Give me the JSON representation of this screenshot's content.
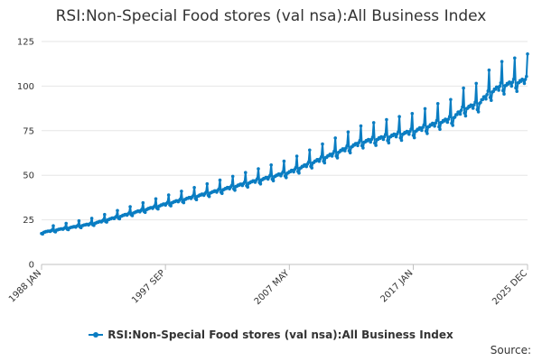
{
  "chart_data": {
    "type": "line",
    "title": "RSI:Non-Special Food stores (val nsa):All Business Index",
    "xlabel": "",
    "ylabel": "",
    "ylim": [
      0,
      125
    ],
    "yticks": [
      0,
      25,
      50,
      75,
      100,
      125
    ],
    "x_range": [
      "1988 JAN",
      "2025 DEC"
    ],
    "xticks": [
      "1988 JAN",
      "1997 SEP",
      "2007 MAY",
      "2017 JAN",
      "2025 DEC"
    ],
    "legend": "bottom-center",
    "grid": "horizontal",
    "series": [
      {
        "name": "RSI:Non-Special Food stores (val nsa):All Business Index",
        "color": "#0a7dc2",
        "frequency": "monthly",
        "trend_anchors": [
          {
            "x": "1988 JAN",
            "y": 18
          },
          {
            "x": "1992 JAN",
            "y": 23
          },
          {
            "x": "1997 SEP",
            "y": 34
          },
          {
            "x": "2002 JAN",
            "y": 42
          },
          {
            "x": "2007 MAY",
            "y": 52
          },
          {
            "x": "2010 JAN",
            "y": 60
          },
          {
            "x": "2013 JAN",
            "y": 69
          },
          {
            "x": "2017 JAN",
            "y": 75
          },
          {
            "x": "2019 JAN",
            "y": 80
          },
          {
            "x": "2020 JAN",
            "y": 82
          },
          {
            "x": "2021 JAN",
            "y": 88
          },
          {
            "x": "2022 JAN",
            "y": 90
          },
          {
            "x": "2023 JAN",
            "y": 97
          },
          {
            "x": "2024 JAN",
            "y": 101
          },
          {
            "x": "2025 DEC",
            "y": 104
          }
        ],
        "december_peak_pct": 0.13,
        "last_value": 118
      }
    ]
  },
  "source_label": "Source:"
}
